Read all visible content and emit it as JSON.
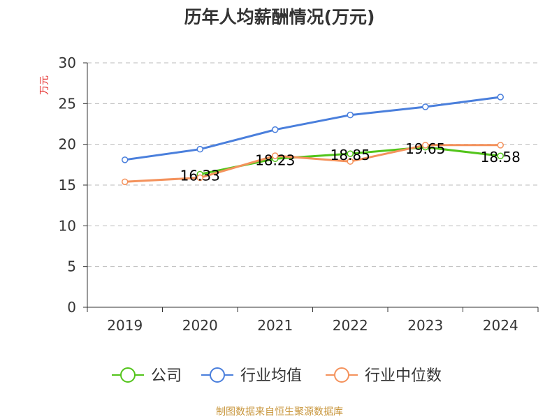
{
  "chart_data": {
    "type": "line",
    "title": "历年人均薪酬情况(万元)",
    "ylabel": "万元",
    "xlabel": "",
    "categories": [
      "2019",
      "2020",
      "2021",
      "2022",
      "2023",
      "2024"
    ],
    "ylim": [
      0,
      30
    ],
    "yticks": [
      0,
      5,
      10,
      15,
      20,
      25,
      30
    ],
    "grid": true,
    "legend_position": "bottom",
    "series": [
      {
        "name": "公司",
        "color": "#52c41a",
        "values": [
          null,
          16.33,
          18.23,
          18.85,
          19.65,
          18.58
        ],
        "labels": [
          "",
          "16.33",
          "18.23",
          "18.85",
          "19.65",
          "18.58"
        ]
      },
      {
        "name": "行业均值",
        "color": "#4a7fdc",
        "values": [
          18.1,
          19.4,
          21.8,
          23.6,
          24.6,
          25.8
        ],
        "labels": []
      },
      {
        "name": "行业中位数",
        "color": "#f4925c",
        "values": [
          15.4,
          15.9,
          18.6,
          17.9,
          19.9,
          19.9
        ],
        "labels": []
      }
    ],
    "source": "制图数据来自恒生聚源数据库",
    "colors": {
      "title": "#333333",
      "ylabel": "#e5302e",
      "axis": "#333333",
      "grid": "#bbbbbb",
      "source": "#c8963c"
    }
  }
}
